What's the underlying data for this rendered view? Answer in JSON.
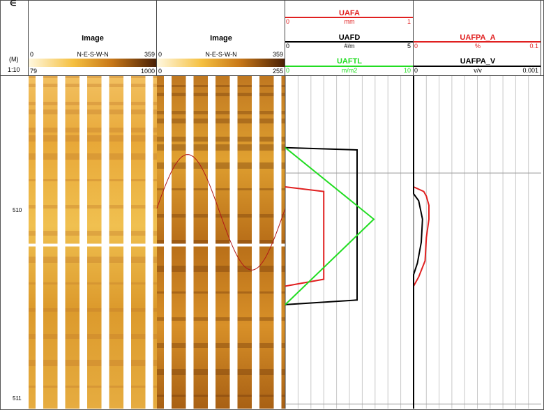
{
  "depth_track": {
    "unit": "(M)",
    "scale": "1:10",
    "marker": "∈"
  },
  "image_tracks": [
    {
      "title": "Image",
      "axis_label": "N-E-S-W-N",
      "axis_min": "0",
      "axis_max": "359",
      "scale_min": "79",
      "scale_max": "1000"
    },
    {
      "title": "Image",
      "axis_label": "N-E-S-W-N",
      "axis_min": "0",
      "axis_max": "359",
      "scale_min": "0",
      "scale_max": "255"
    }
  ],
  "curve_track_1": [
    {
      "name": "UAFA",
      "unit": "mm",
      "min": "0",
      "max": "1",
      "color": "#e02020"
    },
    {
      "name": "UAFD",
      "unit": "#/m",
      "min": "0",
      "max": "5",
      "color": "#000000"
    },
    {
      "name": "UAFTL",
      "unit": "m/m2",
      "min": "0",
      "max": "10",
      "color": "#22dd22"
    }
  ],
  "curve_track_2": [
    {
      "name": "UAFPA_A",
      "unit": "%",
      "min": "0",
      "max": "0.1",
      "color": "#e02020"
    },
    {
      "name": "UAFPA_V",
      "unit": "v/v",
      "min": "0",
      "max": "0.001",
      "color": "#000000"
    }
  ],
  "chart_data": {
    "type": "line",
    "depth_range": [
      509.58,
      511.02
    ],
    "depth_ticks": [
      "510",
      "511"
    ],
    "sinusoid": {
      "depth_center": 510.17,
      "amplitude_m": 0.25,
      "color": "#b01818"
    },
    "series": [
      {
        "name": "UAFD",
        "track": 1,
        "range": [
          0,
          5
        ],
        "points": [
          [
            509.89,
            0
          ],
          [
            509.9,
            2.8
          ],
          [
            510.55,
            2.8
          ],
          [
            510.57,
            0
          ]
        ]
      },
      {
        "name": "UAFA",
        "track": 1,
        "range": [
          0,
          1
        ],
        "points": [
          [
            510.06,
            0
          ],
          [
            510.08,
            0.3
          ],
          [
            510.46,
            0.3
          ],
          [
            510.49,
            0
          ]
        ]
      },
      {
        "name": "UAFTL",
        "track": 1,
        "range": [
          0,
          10
        ],
        "points": [
          [
            509.89,
            0
          ],
          [
            510.2,
            6.9
          ],
          [
            510.57,
            0
          ]
        ]
      },
      {
        "name": "UAFPA_A",
        "track": 2,
        "range": [
          0,
          0.1
        ],
        "points": [
          [
            509.58,
            0
          ],
          [
            510.06,
            0
          ],
          [
            510.08,
            0.008
          ],
          [
            510.1,
            0.01
          ],
          [
            510.14,
            0.012
          ],
          [
            510.2,
            0.012
          ],
          [
            510.28,
            0.01
          ],
          [
            510.38,
            0.009
          ],
          [
            510.45,
            0.004
          ],
          [
            510.49,
            0
          ]
        ]
      },
      {
        "name": "UAFPA_V",
        "track": 2,
        "range": [
          0,
          0.001
        ],
        "points": [
          [
            509.58,
            0
          ],
          [
            510.09,
            0
          ],
          [
            510.12,
            4e-05
          ],
          [
            510.2,
            7e-05
          ],
          [
            510.3,
            6e-05
          ],
          [
            510.39,
            3e-05
          ],
          [
            510.44,
            0
          ],
          [
            511.02,
            0
          ]
        ]
      }
    ]
  }
}
